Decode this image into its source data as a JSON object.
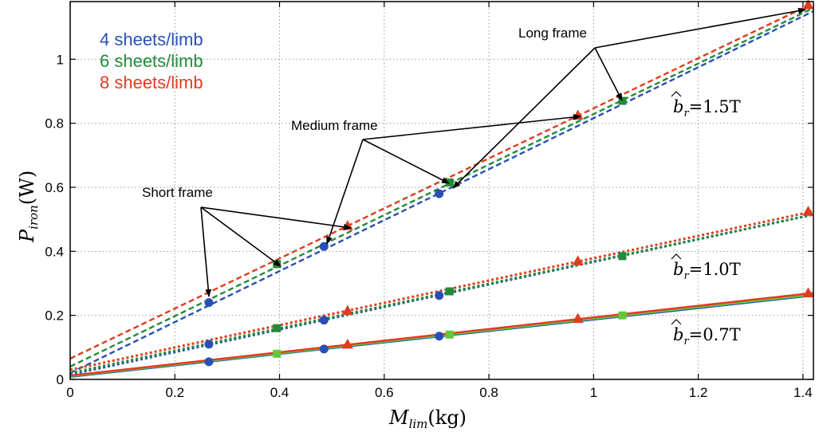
{
  "chart_data": {
    "type": "line",
    "xlabel": "M",
    "xlabel_sub": "lim",
    "xlabel_unit": "(kg)",
    "ylabel": "P",
    "ylabel_sub": "iron",
    "ylabel_unit": "(W)",
    "xlim": [
      0,
      1.42
    ],
    "ylim": [
      0,
      1.18
    ],
    "xticks": [
      0,
      0.2,
      0.4,
      0.6,
      0.8,
      1,
      1.2,
      1.4
    ],
    "xtick_labels": [
      "0",
      "0.2",
      "0.4",
      "0.6",
      "0.8",
      "1",
      "1.2",
      "1.4"
    ],
    "yticks": [
      0,
      0.2,
      0.4,
      0.6,
      0.8,
      1
    ],
    "ytick_labels": [
      "0",
      "0.2",
      "0.4",
      "0.6",
      "0.8",
      "1"
    ],
    "grid": true,
    "legend_position": "top-left",
    "legend": [
      {
        "label": "4 sheets/limb",
        "color": "#2850b4"
      },
      {
        "label": "6 sheets/limb",
        "color": "#228b3a"
      },
      {
        "label": "8 sheets/limb",
        "color": "#e03c1e"
      }
    ],
    "flux_labels": [
      {
        "prefix": "b",
        "sub": "r",
        "text": "=1.5T"
      },
      {
        "prefix": "b",
        "sub": "r",
        "text": "=1.0T"
      },
      {
        "prefix": "b",
        "sub": "r",
        "text": "=0.7T"
      }
    ],
    "annotations": [
      "Short frame",
      "Medium frame",
      "Long frame"
    ],
    "groups": [
      {
        "flux": "1.5T",
        "style": "dashed",
        "series": [
          {
            "color": "#2850b4",
            "marker": "circle",
            "line": [
              [
                0,
                0.02
              ],
              [
                1.42,
                1.15
              ]
            ],
            "points": [
              [
                0.265,
                0.24
              ],
              [
                0.485,
                0.415
              ],
              [
                0.705,
                0.58
              ]
            ]
          },
          {
            "color": "#228b3a",
            "marker": "square",
            "line": [
              [
                0,
                0.04
              ],
              [
                1.42,
                1.16
              ]
            ],
            "points": [
              [
                0.395,
                0.36
              ],
              [
                0.725,
                0.615
              ],
              [
                1.055,
                0.87
              ]
            ]
          },
          {
            "color": "#e03c1e",
            "marker": "triangle",
            "line": [
              [
                0,
                0.065
              ],
              [
                1.42,
                1.175
              ]
            ],
            "points": [
              [
                0.53,
                0.48
              ],
              [
                0.97,
                0.825
              ],
              [
                1.41,
                1.17
              ]
            ]
          }
        ]
      },
      {
        "flux": "1.0T",
        "style": "dotted",
        "series": [
          {
            "color": "#2850b4",
            "marker": "circle",
            "line": [
              [
                0,
                0.015
              ],
              [
                1.42,
                0.515
              ]
            ],
            "points": [
              [
                0.265,
                0.11
              ],
              [
                0.485,
                0.185
              ],
              [
                0.705,
                0.262
              ]
            ]
          },
          {
            "color": "#228b3a",
            "marker": "square",
            "line": [
              [
                0,
                0.02
              ],
              [
                1.42,
                0.515
              ]
            ],
            "points": [
              [
                0.395,
                0.16
              ],
              [
                0.725,
                0.275
              ],
              [
                1.055,
                0.385
              ]
            ]
          },
          {
            "color": "#e03c1e",
            "marker": "triangle",
            "line": [
              [
                0,
                0.03
              ],
              [
                1.42,
                0.525
              ]
            ],
            "points": [
              [
                0.53,
                0.215
              ],
              [
                0.97,
                0.37
              ],
              [
                1.41,
                0.525
              ]
            ]
          }
        ]
      },
      {
        "flux": "0.7T",
        "style": "solid",
        "series": [
          {
            "color": "#2850b4",
            "marker": "circle",
            "line": [
              [
                0,
                0.008
              ],
              [
                1.42,
                0.262
              ]
            ],
            "points": [
              [
                0.265,
                0.055
              ],
              [
                0.485,
                0.095
              ],
              [
                0.705,
                0.135
              ]
            ]
          },
          {
            "color": "#64c83c",
            "marker": "square",
            "line": [
              [
                0,
                0.01
              ],
              [
                1.42,
                0.265
              ]
            ],
            "points": [
              [
                0.395,
                0.08
              ],
              [
                0.725,
                0.14
              ],
              [
                1.055,
                0.2
              ]
            ]
          },
          {
            "color": "#e03c1e",
            "marker": "triangle",
            "line": [
              [
                0,
                0.012
              ],
              [
                1.42,
                0.27
              ]
            ],
            "points": [
              [
                0.53,
                0.11
              ],
              [
                0.97,
                0.19
              ],
              [
                1.41,
                0.27
              ]
            ]
          }
        ]
      }
    ]
  }
}
